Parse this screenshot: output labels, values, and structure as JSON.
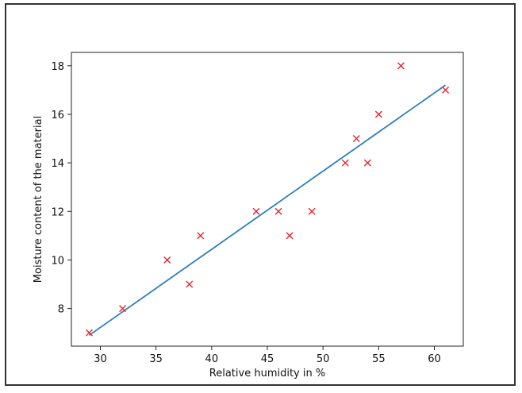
{
  "chart_data": {
    "type": "scatter",
    "xlabel": "Relative humidity in %",
    "ylabel": "Moisture content of the material",
    "xlim": [
      27.4,
      62.6
    ],
    "ylim": [
      6.45,
      18.55
    ],
    "xticks": [
      30,
      35,
      40,
      45,
      50,
      55,
      60
    ],
    "yticks": [
      8,
      10,
      12,
      14,
      16,
      18
    ],
    "grid": false,
    "colors": {
      "points": "#e8242c",
      "line": "#2f7fbf",
      "axes": "#222222"
    },
    "series": [
      {
        "marker": "x",
        "x": [
          29,
          32,
          36,
          38,
          39,
          44,
          46,
          47,
          49,
          52,
          53,
          54,
          55,
          57,
          61
        ],
        "y": [
          7,
          8,
          10,
          9,
          11,
          12,
          12,
          11,
          12,
          14,
          15,
          14,
          16,
          18,
          17
        ]
      }
    ],
    "fit_line": {
      "x": [
        29,
        61
      ],
      "y": [
        6.9,
        17.2
      ]
    }
  }
}
